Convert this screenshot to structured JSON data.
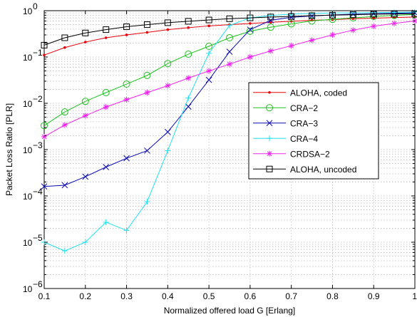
{
  "chart_data": {
    "type": "line",
    "title": "",
    "xlabel": "Normalized offered load G [Erlang]",
    "ylabel": "Packet Loss Ratio [PLR]",
    "xlim": [
      0.1,
      1
    ],
    "ylim": [
      1e-06,
      1
    ],
    "yscale": "log",
    "grid": true,
    "legend_position": "center-right",
    "x_ticks": [
      "0.1",
      "0.2",
      "0.3",
      "0.4",
      "0.5",
      "0.6",
      "0.7",
      "0.8",
      "0.9",
      "1"
    ],
    "y_ticks": [
      {
        "base": "10",
        "exp": "−6"
      },
      {
        "base": "10",
        "exp": "−5"
      },
      {
        "base": "10",
        "exp": "−4"
      },
      {
        "base": "10",
        "exp": "−3"
      },
      {
        "base": "10",
        "exp": "−2"
      },
      {
        "base": "10",
        "exp": "−1"
      },
      {
        "base": "10",
        "exp": "0"
      }
    ],
    "series": [
      {
        "name": "ALOHA, coded",
        "color": "#e8000b",
        "marker": "dot",
        "x": [
          0.1,
          0.15,
          0.2,
          0.25,
          0.3,
          0.35,
          0.4,
          0.45,
          0.5,
          0.55,
          0.6,
          0.65,
          0.7,
          0.75,
          0.8,
          0.85,
          0.9,
          0.95,
          1.0
        ],
        "values": [
          0.11,
          0.16,
          0.21,
          0.26,
          0.3,
          0.34,
          0.39,
          0.43,
          0.47,
          0.5,
          0.53,
          0.56,
          0.59,
          0.62,
          0.64,
          0.67,
          0.69,
          0.71,
          0.73
        ]
      },
      {
        "name": "CRA−2",
        "color": "#1ec01e",
        "marker": "circle",
        "x": [
          0.1,
          0.15,
          0.2,
          0.25,
          0.3,
          0.35,
          0.4,
          0.45,
          0.5,
          0.55,
          0.6,
          0.65,
          0.7,
          0.75,
          0.8,
          0.85,
          0.9,
          0.95,
          1.0
        ],
        "values": [
          0.0033,
          0.0065,
          0.011,
          0.017,
          0.026,
          0.04,
          0.072,
          0.115,
          0.17,
          0.26,
          0.36,
          0.44,
          0.52,
          0.6,
          0.65,
          0.7,
          0.75,
          0.79,
          0.83
        ]
      },
      {
        "name": "CRA−3",
        "color": "#0a0ab4",
        "marker": "x",
        "x": [
          0.1,
          0.15,
          0.2,
          0.25,
          0.3,
          0.35,
          0.4,
          0.45,
          0.5,
          0.55,
          0.6,
          0.65,
          0.7,
          0.75,
          0.8,
          0.85,
          0.9,
          0.95,
          1.0
        ],
        "values": [
          0.00016,
          0.00017,
          0.00026,
          0.00042,
          0.00065,
          0.00095,
          0.0024,
          0.0085,
          0.032,
          0.13,
          0.39,
          0.62,
          0.72,
          0.77,
          0.81,
          0.84,
          0.86,
          0.88,
          0.9
        ]
      },
      {
        "name": "CRA−4",
        "color": "#22e0f0",
        "marker": "plus",
        "x": [
          0.1,
          0.15,
          0.2,
          0.25,
          0.3,
          0.35,
          0.4,
          0.45,
          0.5,
          0.55,
          0.6,
          0.65,
          0.7,
          0.75,
          0.8,
          0.85,
          0.9,
          0.95,
          1.0
        ],
        "values": [
          1e-05,
          6.5e-06,
          1e-05,
          2.7e-05,
          1.8e-05,
          7.5e-05,
          0.00095,
          0.013,
          0.12,
          0.48,
          0.7,
          0.79,
          0.84,
          0.87,
          0.89,
          0.9,
          0.91,
          0.92,
          0.93
        ]
      },
      {
        "name": "CRDSA−2",
        "color": "#ee22ee",
        "marker": "star",
        "x": [
          0.1,
          0.15,
          0.2,
          0.25,
          0.3,
          0.35,
          0.4,
          0.45,
          0.5,
          0.55,
          0.6,
          0.65,
          0.7,
          0.75,
          0.8,
          0.85,
          0.9,
          0.95,
          1.0
        ],
        "values": [
          0.0019,
          0.0034,
          0.0054,
          0.0083,
          0.012,
          0.017,
          0.024,
          0.035,
          0.05,
          0.07,
          0.1,
          0.135,
          0.175,
          0.23,
          0.3,
          0.38,
          0.46,
          0.53,
          0.6
        ]
      },
      {
        "name": "ALOHA, uncoded",
        "color": "#000000",
        "marker": "square",
        "x": [
          0.1,
          0.15,
          0.2,
          0.25,
          0.3,
          0.35,
          0.4,
          0.45,
          0.5,
          0.55,
          0.6,
          0.65,
          0.7,
          0.75,
          0.8,
          0.85,
          0.9,
          0.95,
          1.0
        ],
        "values": [
          0.18,
          0.26,
          0.33,
          0.39,
          0.45,
          0.5,
          0.55,
          0.59,
          0.63,
          0.67,
          0.7,
          0.73,
          0.75,
          0.78,
          0.8,
          0.82,
          0.84,
          0.85,
          0.86
        ]
      }
    ]
  }
}
